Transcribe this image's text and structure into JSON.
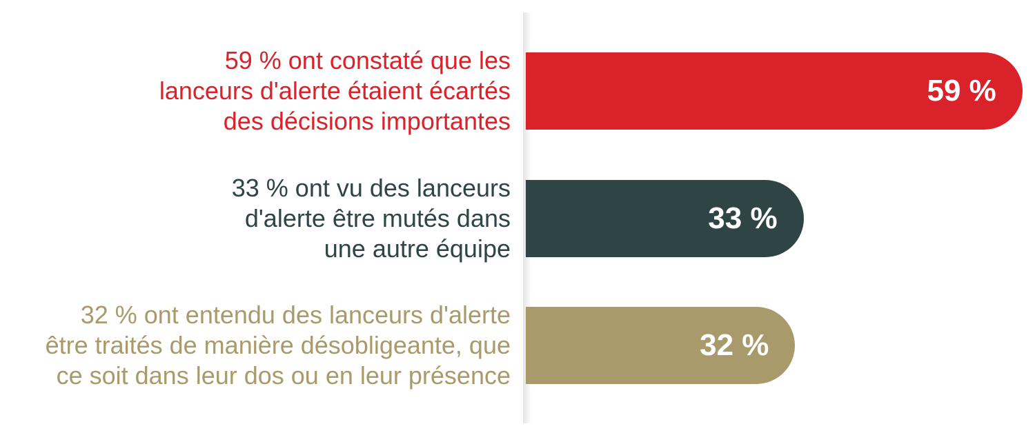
{
  "chart_data": {
    "type": "bar",
    "orientation": "horizontal",
    "categories": [
      "59 % ont constaté que les lanceurs d'alerte étaient écartés des décisions importantes",
      "33 % ont vu des lanceurs d'alerte être mutés dans une autre équipe",
      "32 % ont entendu des lanceurs d'alerte être traités de manière désobligeante, que ce soit dans leur dos ou en leur présence"
    ],
    "category_lines": [
      [
        "59 % ont constaté que les",
        "lanceurs d'alerte étaient écartés",
        "des décisions importantes"
      ],
      [
        "33 % ont vu des lanceurs",
        "d'alerte être mutés dans",
        "une autre équipe"
      ],
      [
        "32 % ont entendu des lanceurs d'alerte",
        "être traités de manière désobligeante, que",
        "ce soit dans leur dos ou en leur présence"
      ]
    ],
    "values": [
      59,
      33,
      32
    ],
    "value_labels": [
      "59 %",
      "33 %",
      "32 %"
    ],
    "colors": [
      "#d9222a",
      "#2f4444",
      "#a89a6b"
    ],
    "xlim": [
      0,
      100
    ],
    "grid": false,
    "legend": "none"
  }
}
